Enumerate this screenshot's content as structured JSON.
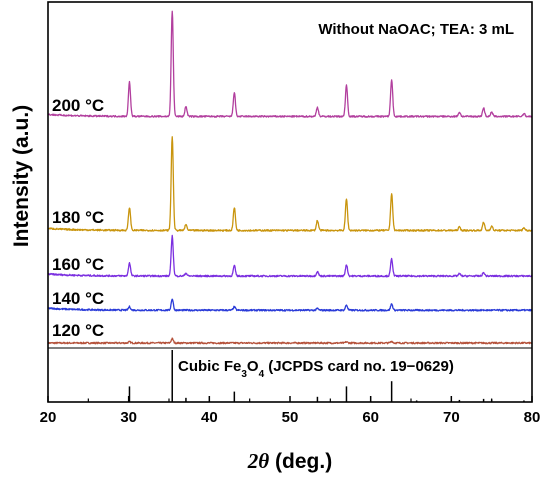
{
  "chart_data": {
    "type": "line",
    "title": "Without NaOAC; TEA: 3 mL",
    "xlabel": {
      "italic": "2θ",
      "plain": " (deg.)"
    },
    "ylabel": "Intensity (a.u.)",
    "xlim": [
      20,
      80
    ],
    "xticks": [
      20,
      30,
      40,
      50,
      60,
      70,
      80
    ],
    "grid": false,
    "legend": "none",
    "reference": {
      "label_prefix": "Cubic Fe",
      "sub1": "3",
      "mid": "O",
      "sub2": "4",
      "label_suffix": " (JCPDS card no. 19−0629)",
      "peaks": [
        {
          "x": 30.1,
          "rel": 0.3
        },
        {
          "x": 35.4,
          "rel": 1.0
        },
        {
          "x": 37.1,
          "rel": 0.08
        },
        {
          "x": 43.1,
          "rel": 0.2
        },
        {
          "x": 53.4,
          "rel": 0.1
        },
        {
          "x": 57.0,
          "rel": 0.3
        },
        {
          "x": 62.6,
          "rel": 0.4
        },
        {
          "x": 65.7,
          "rel": 0.03
        },
        {
          "x": 71.0,
          "rel": 0.04
        },
        {
          "x": 74.0,
          "rel": 0.06
        },
        {
          "x": 75.0,
          "rel": 0.05
        },
        {
          "x": 79.0,
          "rel": 0.03
        }
      ]
    },
    "series": [
      {
        "name": "120 °C",
        "color": "#b5523b",
        "base": 0.0,
        "peaks": [
          {
            "x": 35.4,
            "h": 1.5
          },
          {
            "x": 30.1,
            "h": 0.4
          },
          {
            "x": 62.6,
            "h": 0.6
          },
          {
            "x": 57.0,
            "h": 0.4
          }
        ]
      },
      {
        "name": "140 °C",
        "color": "#2a3bd8",
        "base": 11.5,
        "peaks": [
          {
            "x": 30.1,
            "h": 1.2
          },
          {
            "x": 35.4,
            "h": 4.0
          },
          {
            "x": 43.1,
            "h": 1.2
          },
          {
            "x": 53.4,
            "h": 0.6
          },
          {
            "x": 57.0,
            "h": 1.8
          },
          {
            "x": 62.6,
            "h": 2.2
          }
        ]
      },
      {
        "name": "160 °C",
        "color": "#7b2fe0",
        "base": 23.5,
        "peaks": [
          {
            "x": 30.1,
            "h": 4.5
          },
          {
            "x": 35.4,
            "h": 14.0
          },
          {
            "x": 37.1,
            "h": 1.0
          },
          {
            "x": 43.1,
            "h": 3.6
          },
          {
            "x": 53.4,
            "h": 1.6
          },
          {
            "x": 57.0,
            "h": 4.0
          },
          {
            "x": 62.6,
            "h": 6.0
          },
          {
            "x": 71.0,
            "h": 0.8
          },
          {
            "x": 74.0,
            "h": 1.2
          }
        ]
      },
      {
        "name": "180 °C",
        "color": "#c9950e",
        "base": 39.5,
        "peaks": [
          {
            "x": 30.1,
            "h": 8.0
          },
          {
            "x": 35.4,
            "h": 33.0
          },
          {
            "x": 37.1,
            "h": 2.0
          },
          {
            "x": 43.1,
            "h": 8.0
          },
          {
            "x": 53.4,
            "h": 3.5
          },
          {
            "x": 57.0,
            "h": 11.0
          },
          {
            "x": 62.6,
            "h": 13.0
          },
          {
            "x": 71.0,
            "h": 1.2
          },
          {
            "x": 74.0,
            "h": 2.8
          },
          {
            "x": 75.0,
            "h": 1.5
          },
          {
            "x": 79.0,
            "h": 0.9
          }
        ]
      },
      {
        "name": "200 °C",
        "color": "#b23f9e",
        "base": 79.5,
        "peaks": [
          {
            "x": 30.1,
            "h": 12.0
          },
          {
            "x": 35.4,
            "h": 37.0
          },
          {
            "x": 37.1,
            "h": 3.5
          },
          {
            "x": 43.1,
            "h": 8.5
          },
          {
            "x": 53.4,
            "h": 3.2
          },
          {
            "x": 57.0,
            "h": 11.0
          },
          {
            "x": 62.6,
            "h": 13.0
          },
          {
            "x": 71.0,
            "h": 1.5
          },
          {
            "x": 74.0,
            "h": 3.0
          },
          {
            "x": 75.0,
            "h": 1.5
          },
          {
            "x": 79.0,
            "h": 1.0
          }
        ]
      }
    ]
  }
}
